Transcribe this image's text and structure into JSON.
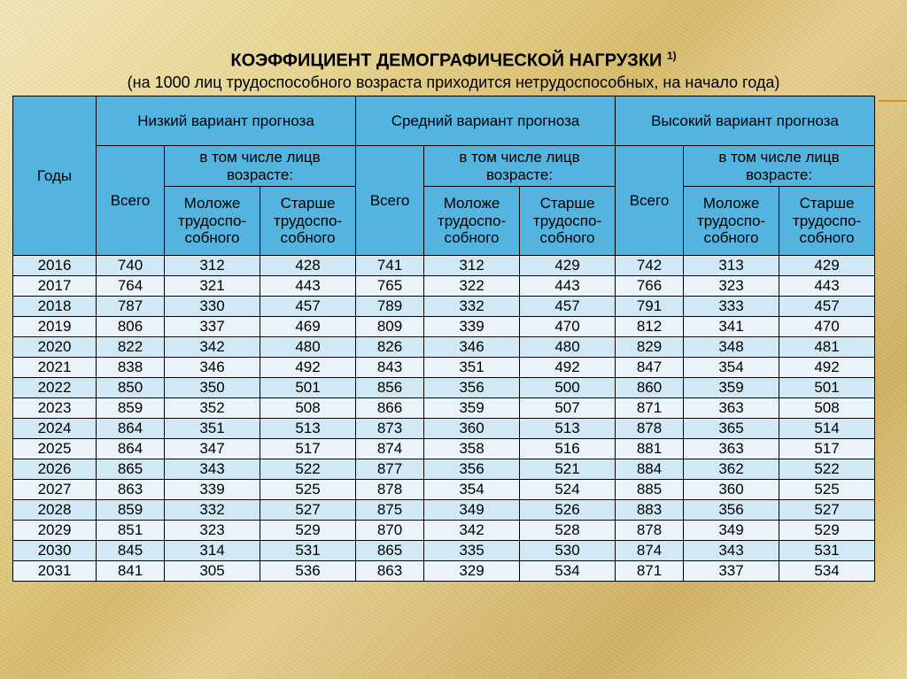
{
  "title_main": "КОЭФФИЦИЕНТ ДЕМОГРАФИЧЕСКОЙ НАГРУЗКИ ",
  "title_sup": "1)",
  "subtitle": "(на 1000 лиц трудоспособного возраста приходится нетрудоспособных, на начало года)",
  "columns": [
    "Годы",
    "Низкий вариант прогноза",
    "Средний вариант прогноза",
    "Высокий вариант прогноза"
  ],
  "sub_total": "Всего",
  "sub_group": "в том числе лицв возрасте:",
  "sub_young": "Моложе трудоспо-собного",
  "sub_old": "Старше трудоспо-собного",
  "colors": {
    "header_bg": "#54b4e0",
    "row_bg": "#d1e9f5",
    "row_alt_bg": "#e9f3f9",
    "border": "#000000",
    "text": "#000000",
    "rule": "#e68a1e"
  },
  "font_sizes": {
    "title": 20,
    "subtitle": 18,
    "cell": 17
  },
  "rows": [
    {
      "year": 2016,
      "low": [
        740,
        312,
        428
      ],
      "mid": [
        741,
        312,
        429
      ],
      "high": [
        742,
        313,
        429
      ]
    },
    {
      "year": 2017,
      "low": [
        764,
        321,
        443
      ],
      "mid": [
        765,
        322,
        443
      ],
      "high": [
        766,
        323,
        443
      ]
    },
    {
      "year": 2018,
      "low": [
        787,
        330,
        457
      ],
      "mid": [
        789,
        332,
        457
      ],
      "high": [
        791,
        333,
        457
      ]
    },
    {
      "year": 2019,
      "low": [
        806,
        337,
        469
      ],
      "mid": [
        809,
        339,
        470
      ],
      "high": [
        812,
        341,
        470
      ]
    },
    {
      "year": 2020,
      "low": [
        822,
        342,
        480
      ],
      "mid": [
        826,
        346,
        480
      ],
      "high": [
        829,
        348,
        481
      ]
    },
    {
      "year": 2021,
      "low": [
        838,
        346,
        492
      ],
      "mid": [
        843,
        351,
        492
      ],
      "high": [
        847,
        354,
        492
      ]
    },
    {
      "year": 2022,
      "low": [
        850,
        350,
        501
      ],
      "mid": [
        856,
        356,
        500
      ],
      "high": [
        860,
        359,
        501
      ]
    },
    {
      "year": 2023,
      "low": [
        859,
        352,
        508
      ],
      "mid": [
        866,
        359,
        507
      ],
      "high": [
        871,
        363,
        508
      ]
    },
    {
      "year": 2024,
      "low": [
        864,
        351,
        513
      ],
      "mid": [
        873,
        360,
        513
      ],
      "high": [
        878,
        365,
        514
      ]
    },
    {
      "year": 2025,
      "low": [
        864,
        347,
        517
      ],
      "mid": [
        874,
        358,
        516
      ],
      "high": [
        881,
        363,
        517
      ]
    },
    {
      "year": 2026,
      "low": [
        865,
        343,
        522
      ],
      "mid": [
        877,
        356,
        521
      ],
      "high": [
        884,
        362,
        522
      ]
    },
    {
      "year": 2027,
      "low": [
        863,
        339,
        525
      ],
      "mid": [
        878,
        354,
        524
      ],
      "high": [
        885,
        360,
        525
      ]
    },
    {
      "year": 2028,
      "low": [
        859,
        332,
        527
      ],
      "mid": [
        875,
        349,
        526
      ],
      "high": [
        883,
        356,
        527
      ]
    },
    {
      "year": 2029,
      "low": [
        851,
        323,
        529
      ],
      "mid": [
        870,
        342,
        528
      ],
      "high": [
        878,
        349,
        529
      ]
    },
    {
      "year": 2030,
      "low": [
        845,
        314,
        531
      ],
      "mid": [
        865,
        335,
        530
      ],
      "high": [
        874,
        343,
        531
      ]
    },
    {
      "year": 2031,
      "low": [
        841,
        305,
        536
      ],
      "mid": [
        863,
        329,
        534
      ],
      "high": [
        871,
        337,
        534
      ]
    }
  ]
}
